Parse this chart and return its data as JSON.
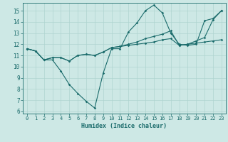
{
  "xlabel": "Humidex (Indice chaleur)",
  "bg_color": "#cde8e5",
  "line_color": "#1a6b6b",
  "grid_color": "#afd4d0",
  "xlim": [
    -0.5,
    23.5
  ],
  "ylim": [
    5.8,
    15.7
  ],
  "yticks": [
    6,
    7,
    8,
    9,
    10,
    11,
    12,
    13,
    14,
    15
  ],
  "xticks": [
    0,
    1,
    2,
    3,
    4,
    5,
    6,
    7,
    8,
    9,
    10,
    11,
    12,
    13,
    14,
    15,
    16,
    17,
    18,
    19,
    20,
    21,
    22,
    23
  ],
  "series": [
    [
      11.6,
      11.4,
      10.6,
      10.6,
      9.6,
      8.4,
      7.6,
      6.9,
      6.3,
      9.4,
      11.6,
      11.6,
      13.1,
      13.9,
      15.0,
      15.5,
      14.8,
      13.0,
      12.0,
      11.9,
      12.0,
      14.1,
      14.3,
      15.0
    ],
    [
      11.6,
      11.4,
      10.6,
      10.8,
      10.8,
      10.5,
      11.0,
      11.1,
      11.0,
      11.3,
      11.7,
      11.8,
      11.9,
      12.0,
      12.1,
      12.2,
      12.4,
      12.5,
      11.9,
      12.0,
      12.1,
      12.2,
      12.3,
      12.4
    ],
    [
      11.6,
      11.4,
      10.6,
      10.8,
      10.8,
      10.5,
      11.0,
      11.1,
      11.0,
      11.3,
      11.7,
      11.8,
      12.0,
      12.2,
      12.5,
      12.7,
      12.9,
      13.2,
      11.9,
      12.0,
      12.3,
      12.6,
      14.2,
      15.0
    ]
  ]
}
